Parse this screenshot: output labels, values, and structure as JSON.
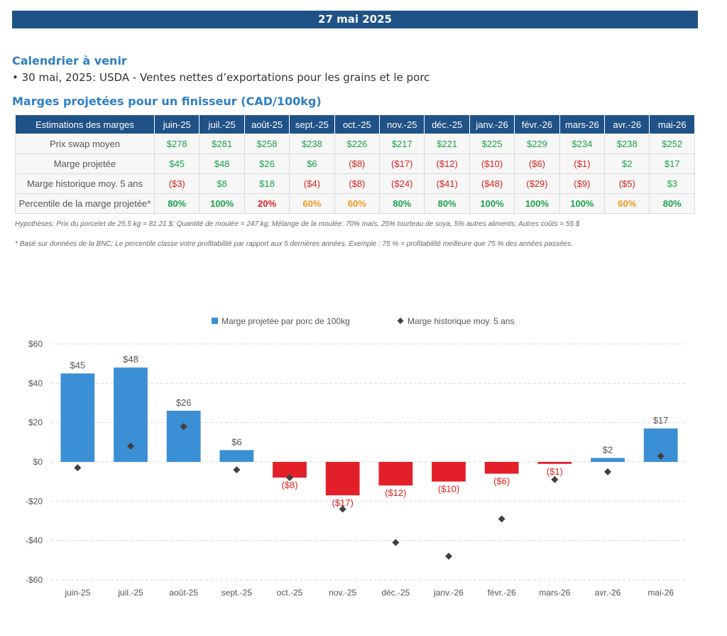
{
  "header": {
    "date": "27 mai 2025"
  },
  "calendar": {
    "title": "Calendrier à venir",
    "items": [
      "• 30 mai, 2025: USDA - Ventes nettes d’exportations pour les grains et le porc"
    ]
  },
  "margins_section": {
    "title": "Marges projetées pour un finisseur (CAD/100kg)"
  },
  "table": {
    "header_label": "Estimations des marges",
    "months": [
      "juin-25",
      "juil.-25",
      "août-25",
      "sept.-25",
      "oct.-25",
      "nov.-25",
      "déc.-25",
      "janv.-26",
      "févr.-26",
      "mars-26",
      "avr.-26",
      "mai-26"
    ],
    "rows": [
      {
        "label": "Prix swap moyen",
        "values": [
          "$278",
          "$281",
          "$258",
          "$238",
          "$226",
          "$217",
          "$221",
          "$225",
          "$229",
          "$234",
          "$238",
          "$252"
        ]
      },
      {
        "label": "Marge projetée",
        "values": [
          "$45",
          "$48",
          "$26",
          "$6",
          "($8)",
          "($17)",
          "($12)",
          "($10)",
          "($6)",
          "($1)",
          "$2",
          "$17"
        ]
      },
      {
        "label": "Marge historique moy. 5 ans",
        "values": [
          "($3)",
          "$8",
          "$18",
          "($4)",
          "($8)",
          "($24)",
          "($41)",
          "($48)",
          "($29)",
          "($9)",
          "($5)",
          "$3"
        ]
      },
      {
        "label": "Percentile de la marge projetée*",
        "values": [
          "80%",
          "100%",
          "20%",
          "60%",
          "60%",
          "80%",
          "80%",
          "100%",
          "100%",
          "100%",
          "60%",
          "80%"
        ]
      }
    ]
  },
  "notes": {
    "hypotheses": "Hypothèses: Prix du porcelet de 25.5 kg = 81.21 $; Quantité de moulée = 247 kg; Mélange de la moulée: 70% maïs, 25% tourteau de soya, 5% autres aliments; Autres coûts = 55 $",
    "footnote": "* Basé sur données de la BNC; Le percentile classe votre profitabilité par rapport aux 5 dernières années. Exemple : 75 % = profitabilité meilleure que 75 % des années passées."
  },
  "colors": {
    "header_bg": "#1f5287",
    "title": "#2f7fc1",
    "positive": "#3b8fd4",
    "negative": "#e3202a",
    "marker": "#404040"
  },
  "chart_data": {
    "type": "bar",
    "categories": [
      "juin-25",
      "juil.-25",
      "août-25",
      "sept.-25",
      "oct.-25",
      "nov.-25",
      "déc.-25",
      "janv.-26",
      "févr.-26",
      "mars-26",
      "avr.-26",
      "mai-26"
    ],
    "series": [
      {
        "name": "Marge projetée par porc de 100kg",
        "type": "bar",
        "values": [
          45,
          48,
          26,
          6,
          -8,
          -17,
          -12,
          -10,
          -6,
          -1,
          2,
          17
        ],
        "labels": [
          "$45",
          "$48",
          "$26",
          "$6",
          "($8)",
          "($17)",
          "($12)",
          "($10)",
          "($6)",
          "($1)",
          "$2",
          "$17"
        ]
      },
      {
        "name": "Marge historique moy. 5 ans",
        "type": "scatter",
        "values": [
          -3,
          8,
          18,
          -4,
          -8,
          -24,
          -41,
          -48,
          -29,
          -9,
          -5,
          3
        ]
      }
    ],
    "yticks": [
      "$60",
      "$40",
      "$20",
      "$0",
      "-$20",
      "-$40",
      "-$60"
    ],
    "ylim": [
      -60,
      60
    ],
    "legend": "top",
    "grid": true
  }
}
